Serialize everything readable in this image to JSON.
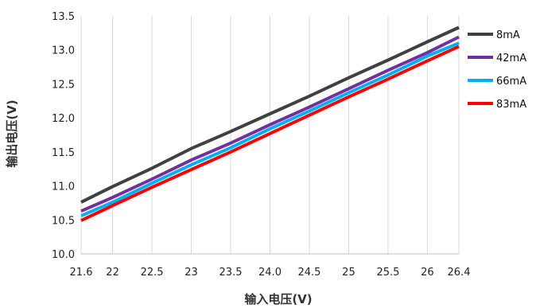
{
  "chart_data": {
    "type": "line",
    "xlabel": "输入电压(V)",
    "ylabel": "输出电压(V)",
    "xlim": [
      21.6,
      26.4
    ],
    "ylim": [
      10.0,
      13.5
    ],
    "x_ticks": [
      "21.6",
      "22",
      "22.5",
      "23",
      "23.5",
      "24.0",
      "24.5",
      "25",
      "25.5",
      "26",
      "26.4"
    ],
    "x_tick_values": [
      21.6,
      22,
      22.5,
      23,
      23.5,
      24.0,
      24.5,
      25,
      25.5,
      26,
      26.4
    ],
    "y_ticks": [
      "10.0",
      "10.5",
      "11.0",
      "11.5",
      "12.0",
      "12.5",
      "13.0",
      "13.5"
    ],
    "y_tick_values": [
      10.0,
      10.5,
      11.0,
      11.5,
      12.0,
      12.5,
      13.0,
      13.5
    ],
    "grid": "vertical",
    "legend_position": "right",
    "x": [
      21.6,
      22,
      22.5,
      23,
      23.5,
      24.0,
      24.5,
      25,
      25.5,
      26,
      26.4
    ],
    "series": [
      {
        "name": "8mA",
        "color": "#404040",
        "values": [
          10.76,
          10.99,
          11.26,
          11.55,
          11.8,
          12.06,
          12.32,
          12.59,
          12.85,
          13.12,
          13.33
        ]
      },
      {
        "name": "42mA",
        "color": "#7030a0",
        "values": [
          10.63,
          10.83,
          11.1,
          11.38,
          11.63,
          11.9,
          12.16,
          12.43,
          12.7,
          12.96,
          13.19
        ]
      },
      {
        "name": "66mA",
        "color": "#00b0f0",
        "values": [
          10.56,
          10.76,
          11.04,
          11.31,
          11.56,
          11.84,
          12.1,
          12.37,
          12.63,
          12.91,
          13.1
        ]
      },
      {
        "name": "83mA",
        "color": "#ff0000",
        "values": [
          10.49,
          10.71,
          10.98,
          11.24,
          11.5,
          11.77,
          12.04,
          12.31,
          12.57,
          12.84,
          13.05
        ]
      }
    ]
  }
}
